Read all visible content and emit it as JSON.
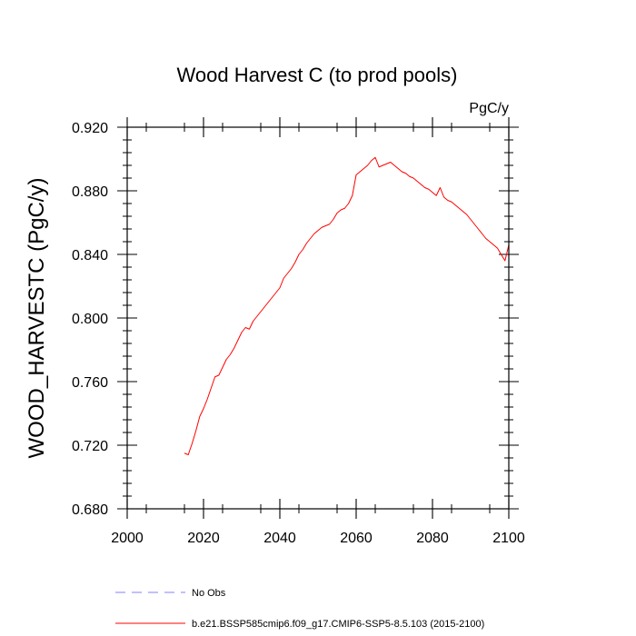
{
  "chart_data": {
    "type": "line",
    "title": "Wood Harvest C (to prod pools)",
    "units_label": "PgC/y",
    "xlabel": "",
    "ylabel": "WOOD_HARVESTC  (PgC/y)",
    "xlim": [
      2000,
      2100
    ],
    "ylim": [
      0.68,
      0.92
    ],
    "x_ticks": [
      2000,
      2020,
      2040,
      2060,
      2080,
      2100
    ],
    "x_tick_labels": [
      "2000",
      "2020",
      "2040",
      "2060",
      "2080",
      "2100"
    ],
    "y_ticks": [
      0.68,
      0.72,
      0.76,
      0.8,
      0.84,
      0.88,
      0.92
    ],
    "y_tick_labels": [
      "0.680",
      "0.720",
      "0.760",
      "0.800",
      "0.840",
      "0.880",
      "0.920"
    ],
    "grid": false,
    "legend_position": "bottom",
    "series": [
      {
        "name": "No Obs",
        "color": "#8080ff",
        "style": "dashed",
        "x": [],
        "values": []
      },
      {
        "name": "b.e21.BSSP585cmip6.f09_g17.CMIP6-SSP5-8.5.103 (2015-2100)",
        "color": "#ff0000",
        "style": "solid",
        "x": [
          2015,
          2016,
          2017,
          2018,
          2019,
          2020,
          2021,
          2022,
          2023,
          2024,
          2025,
          2026,
          2027,
          2028,
          2029,
          2030,
          2031,
          2032,
          2033,
          2034,
          2035,
          2036,
          2037,
          2038,
          2039,
          2040,
          2041,
          2042,
          2043,
          2044,
          2045,
          2046,
          2047,
          2048,
          2049,
          2050,
          2051,
          2052,
          2053,
          2054,
          2055,
          2056,
          2057,
          2058,
          2059,
          2060,
          2061,
          2062,
          2063,
          2064,
          2065,
          2066,
          2067,
          2068,
          2069,
          2070,
          2071,
          2072,
          2073,
          2074,
          2075,
          2076,
          2077,
          2078,
          2079,
          2080,
          2081,
          2082,
          2083,
          2084,
          2085,
          2086,
          2087,
          2088,
          2089,
          2090,
          2091,
          2092,
          2093,
          2094,
          2095,
          2096,
          2097,
          2098,
          2099,
          2100
        ],
        "values": [
          0.715,
          0.714,
          0.721,
          0.729,
          0.738,
          0.743,
          0.749,
          0.756,
          0.763,
          0.764,
          0.769,
          0.774,
          0.777,
          0.781,
          0.786,
          0.791,
          0.794,
          0.793,
          0.798,
          0.801,
          0.804,
          0.807,
          0.81,
          0.813,
          0.816,
          0.819,
          0.825,
          0.828,
          0.831,
          0.835,
          0.84,
          0.843,
          0.847,
          0.85,
          0.853,
          0.855,
          0.857,
          0.858,
          0.859,
          0.862,
          0.866,
          0.868,
          0.869,
          0.872,
          0.877,
          0.89,
          0.892,
          0.894,
          0.896,
          0.899,
          0.901,
          0.895,
          0.896,
          0.897,
          0.898,
          0.896,
          0.894,
          0.892,
          0.891,
          0.889,
          0.888,
          0.886,
          0.884,
          0.882,
          0.881,
          0.879,
          0.877,
          0.882,
          0.876,
          0.874,
          0.873,
          0.871,
          0.869,
          0.867,
          0.865,
          0.862,
          0.859,
          0.856,
          0.853,
          0.85,
          0.848,
          0.846,
          0.844,
          0.84,
          0.836,
          0.846
        ]
      }
    ]
  }
}
